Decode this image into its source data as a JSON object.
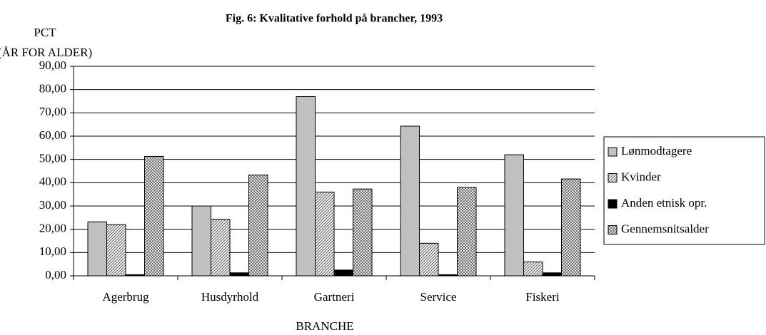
{
  "chart_data": {
    "type": "bar",
    "title": "Fig. 6: Kvalitative forhold på brancher, 1993",
    "ylabel": [
      "PCT",
      "(ÅR FOR ALDER)"
    ],
    "xlabel": "BRANCHE",
    "categories": [
      "Agerbrug",
      "Husdyrhold",
      "Gartneri",
      "Service",
      "Fiskeri"
    ],
    "series": [
      {
        "name": "Lønmodtagere",
        "color": "#c0c0c0",
        "pattern": "solid",
        "values": [
          23.2,
          30,
          77,
          64.3,
          52
        ]
      },
      {
        "name": "Kvinder",
        "color": "#c0c0c0",
        "pattern": "hatch",
        "values": [
          22,
          24.3,
          36,
          14,
          6
        ]
      },
      {
        "name": "Anden etnisk opr.",
        "color": "#000000",
        "pattern": "solid",
        "values": [
          0.5,
          1.3,
          2.5,
          0.5,
          1.3
        ]
      },
      {
        "name": "Gennemsnitsalder",
        "color": "#c0c0c0",
        "pattern": "crosshatch",
        "values": [
          51.3,
          43.3,
          37.3,
          38,
          41.6
        ]
      }
    ],
    "ylim": [
      0,
      90
    ],
    "yticks": [
      {
        "value": 0,
        "label": "0,00"
      },
      {
        "value": 10,
        "label": "10,00"
      },
      {
        "value": 20,
        "label": "20,00"
      },
      {
        "value": 30,
        "label": "30,00"
      },
      {
        "value": 40,
        "label": "40,00"
      },
      {
        "value": 50,
        "label": "50,00"
      },
      {
        "value": 60,
        "label": "60,00"
      },
      {
        "value": 70,
        "label": "70,00"
      },
      {
        "value": 80,
        "label": "80,00"
      },
      {
        "value": 90,
        "label": "90,00"
      }
    ],
    "grid": true,
    "legend": "right"
  }
}
